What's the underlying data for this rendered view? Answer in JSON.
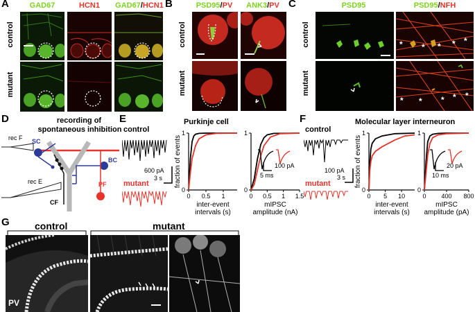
{
  "panels": {
    "A": "A",
    "B": "B",
    "C": "C",
    "D": "D",
    "E": "E",
    "F": "F",
    "G": "G"
  },
  "conditions": {
    "control": "control",
    "mutant": "mutant"
  },
  "panelA": {
    "col1": "GAD67",
    "col2": "HCN1",
    "col3a": "GAD67",
    "slash": "/",
    "col3b": "HCN1"
  },
  "panelB": {
    "col1a": "PSD95",
    "col1b": "PV",
    "col2a": "ANK3",
    "col2b": "PV"
  },
  "panelC": {
    "col1": "PSD95",
    "col2a": "PSD95",
    "col2b": "NFH",
    "star": "*"
  },
  "panelD": {
    "title_l1": "recording of",
    "title_l2": "spontaneous inhibition",
    "sc": "SC",
    "bc": "BC",
    "pf": "PF",
    "cf": "CF",
    "recF": "rec F",
    "recE": "rec E"
  },
  "panelE": {
    "title": "Purkinje cell",
    "trace_control": "control",
    "trace_mutant": "mutant",
    "scale_amp": "600 pA",
    "scale_time": "3 s",
    "ylabel": "fraction of events",
    "xlabel1_l1": "inter-event",
    "xlabel1_l2": "intervals (s)",
    "xlabel2_l1": "mIPSC",
    "xlabel2_l2": "amplitude (nA)",
    "inset_amp": "100 pA",
    "inset_time": "5 ms"
  },
  "panelF": {
    "title": "Molecular layer interneuron",
    "trace_control": "control",
    "trace_mutant": "mutant",
    "scale_amp": "100 pA",
    "scale_time": "3 s",
    "ylabel": "fraction of events",
    "xlabel1_l1": "inter-event",
    "xlabel1_l2": "intervals (s)",
    "xlabel2_l1": "mIPSC",
    "xlabel2_l2": "amplitude (pA)",
    "inset_amp": "20 pA",
    "inset_time": "10 ms"
  },
  "panelG": {
    "control": "control",
    "mutant": "mutant",
    "stain": "PV"
  },
  "colors": {
    "control": "#000000",
    "mutant": "#e8332a",
    "green": "#7ed321",
    "red": "#e8332a",
    "blue": "#2e3a9a"
  },
  "chart_data": [
    {
      "type": "line",
      "panel": "E",
      "xlabel": "inter-event intervals (s)",
      "ylabel": "fraction of events",
      "xticks": [
        "0",
        "0.5",
        "1"
      ],
      "yticks": [
        "0",
        "1"
      ],
      "xlim": [
        0,
        1.4
      ],
      "ylim": [
        0,
        1
      ],
      "series": [
        {
          "color": "#000000",
          "x": [
            0,
            0.05,
            0.1,
            0.15,
            0.2,
            0.3,
            0.5,
            1.4
          ],
          "y": [
            0,
            0.55,
            0.85,
            0.95,
            0.98,
            0.995,
            1,
            1
          ]
        },
        {
          "color": "#e8332a",
          "x": [
            0,
            0.05,
            0.1,
            0.2,
            0.3,
            0.5,
            0.8,
            1.4
          ],
          "y": [
            0,
            0.3,
            0.55,
            0.78,
            0.9,
            0.97,
            0.995,
            1
          ]
        }
      ]
    },
    {
      "type": "line",
      "panel": "E",
      "xlabel": "mIPSC amplitude (nA)",
      "ylabel": "fraction of events",
      "xticks": [
        "0",
        "0.5",
        "1",
        "1.5"
      ],
      "yticks": [
        "0",
        "1"
      ],
      "xlim": [
        0,
        1.5
      ],
      "ylim": [
        0,
        1
      ],
      "series": [
        {
          "color": "#000000",
          "x": [
            0,
            0.1,
            0.2,
            0.3,
            0.4,
            0.5,
            0.7,
            1.5
          ],
          "y": [
            0,
            0.2,
            0.55,
            0.8,
            0.92,
            0.97,
            0.995,
            1
          ]
        },
        {
          "color": "#e8332a",
          "x": [
            0,
            0.1,
            0.2,
            0.3,
            0.4,
            0.6,
            0.9,
            1.5
          ],
          "y": [
            0,
            0.1,
            0.35,
            0.6,
            0.78,
            0.93,
            0.99,
            1
          ]
        }
      ]
    },
    {
      "type": "line",
      "panel": "F",
      "xlabel": "inter-event intervals (s)",
      "ylabel": "fraction of events",
      "xticks": [
        "0",
        "5",
        "10"
      ],
      "yticks": [
        "0",
        "1"
      ],
      "xlim": [
        0,
        14
      ],
      "ylim": [
        0,
        1
      ],
      "series": [
        {
          "color": "#000000",
          "x": [
            0,
            0.3,
            0.6,
            1,
            2,
            4,
            8,
            14
          ],
          "y": [
            0,
            0.5,
            0.72,
            0.82,
            0.9,
            0.95,
            0.99,
            1
          ]
        },
        {
          "color": "#e8332a",
          "x": [
            0,
            0.3,
            0.6,
            1,
            2,
            4,
            8,
            11,
            14
          ],
          "y": [
            0,
            0.35,
            0.5,
            0.6,
            0.68,
            0.76,
            0.88,
            0.95,
            0.97
          ]
        }
      ]
    },
    {
      "type": "line",
      "panel": "F",
      "xlabel": "mIPSC amplitude (pA)",
      "ylabel": "fraction of events",
      "xticks": [
        "0",
        "400",
        "800"
      ],
      "yticks": [
        "0",
        "1"
      ],
      "xlim": [
        0,
        800
      ],
      "ylim": [
        0,
        1
      ],
      "series": [
        {
          "color": "#000000",
          "x": [
            0,
            30,
            60,
            100,
            150,
            250,
            400,
            800
          ],
          "y": [
            0,
            0.5,
            0.85,
            0.95,
            0.98,
            0.995,
            1,
            1
          ]
        },
        {
          "color": "#e8332a",
          "x": [
            0,
            30,
            60,
            100,
            150,
            250,
            400,
            800
          ],
          "y": [
            0,
            0.3,
            0.62,
            0.82,
            0.92,
            0.97,
            0.99,
            1
          ]
        }
      ]
    }
  ]
}
